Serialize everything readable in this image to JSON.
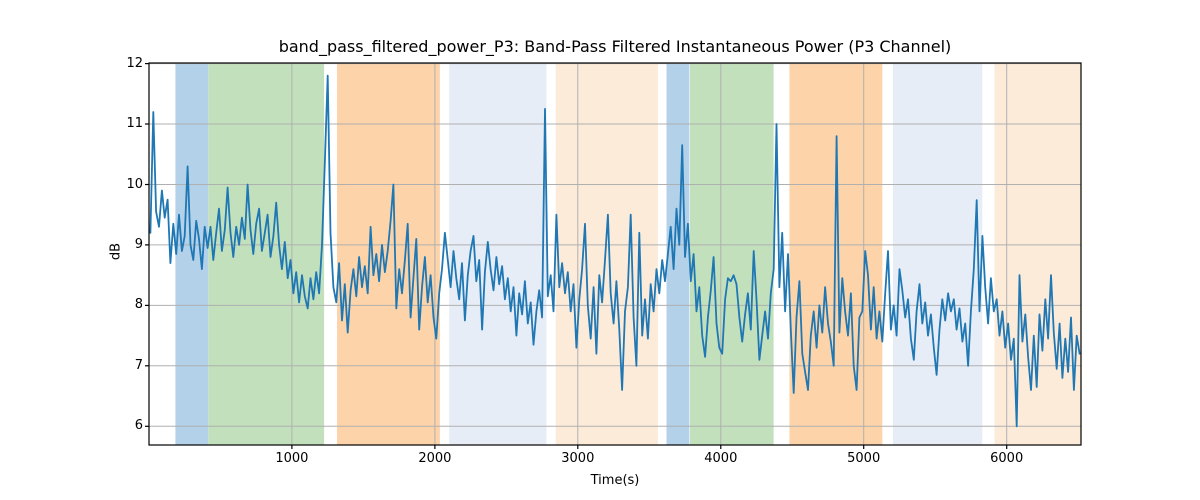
{
  "figure": {
    "title": "band_pass_filtered_power_P3: Band-Pass Filtered Instantaneous Power (P3 Channel)",
    "xlabel": "Time(s)",
    "ylabel": "dB"
  },
  "chart_data": {
    "type": "line",
    "title": "band_pass_filtered_power_P3: Band-Pass Filtered Instantaneous Power (P3 Channel)",
    "xlabel": "Time(s)",
    "ylabel": "dB",
    "xlim": [
      0,
      6520
    ],
    "ylim": [
      5.69,
      12.01
    ],
    "x_ticks": [
      1000,
      2000,
      3000,
      4000,
      5000,
      6000
    ],
    "y_ticks": [
      6,
      7,
      8,
      9,
      10,
      11,
      12
    ],
    "grid": true,
    "legend_position": "none",
    "line_color": "#1f77b4",
    "grid_color": "#b0b0b0",
    "spine_color": "#000000",
    "band_colors": {
      "blue": "#b3d1e9",
      "green": "#c3e0bc",
      "orange": "#fdd4a9",
      "lightblue": "#e6edf6",
      "lightorange": "#fdebda"
    },
    "background_bands": [
      {
        "x0": 185,
        "x1": 415,
        "color_key": "blue"
      },
      {
        "x0": 415,
        "x1": 1225,
        "color_key": "green"
      },
      {
        "x0": 1315,
        "x1": 2035,
        "color_key": "orange"
      },
      {
        "x0": 2100,
        "x1": 2780,
        "color_key": "lightblue"
      },
      {
        "x0": 2845,
        "x1": 3560,
        "color_key": "lightorange"
      },
      {
        "x0": 3620,
        "x1": 3780,
        "color_key": "blue"
      },
      {
        "x0": 3785,
        "x1": 4370,
        "color_key": "green"
      },
      {
        "x0": 4480,
        "x1": 5130,
        "color_key": "orange"
      },
      {
        "x0": 5205,
        "x1": 5830,
        "color_key": "lightblue"
      },
      {
        "x0": 5915,
        "x1": 6520,
        "color_key": "lightorange"
      }
    ],
    "series": [
      {
        "name": "band_pass_filtered_power_P3",
        "x_start": 10,
        "x_step": 20,
        "values": [
          9.2,
          11.2,
          9.55,
          9.3,
          9.9,
          9.45,
          9.75,
          8.7,
          9.35,
          8.85,
          9.5,
          8.9,
          9.15,
          10.3,
          9.0,
          8.75,
          9.4,
          9.1,
          8.6,
          9.3,
          8.95,
          9.3,
          8.75,
          9.2,
          9.6,
          8.9,
          9.25,
          9.95,
          9.2,
          8.8,
          9.3,
          9.0,
          9.45,
          9.1,
          10.0,
          9.25,
          8.85,
          9.35,
          9.6,
          8.9,
          9.2,
          9.5,
          8.8,
          9.15,
          9.7,
          9.0,
          8.6,
          9.05,
          8.45,
          8.75,
          8.2,
          8.55,
          8.05,
          8.5,
          8.15,
          7.95,
          8.45,
          8.1,
          8.55,
          8.2,
          9.0,
          10.35,
          11.8,
          9.2,
          8.3,
          8.05,
          8.7,
          7.75,
          8.35,
          7.55,
          8.25,
          8.6,
          8.15,
          8.8,
          8.3,
          8.65,
          8.2,
          9.3,
          8.5,
          8.85,
          8.4,
          9.0,
          8.55,
          8.9,
          9.4,
          10.0,
          7.95,
          8.6,
          8.2,
          8.75,
          9.35,
          7.8,
          8.45,
          9.1,
          7.6,
          8.3,
          8.8,
          8.05,
          8.5,
          7.8,
          7.45,
          8.2,
          8.6,
          9.2,
          8.75,
          8.3,
          8.9,
          8.45,
          8.1,
          8.7,
          7.75,
          8.5,
          8.9,
          9.15,
          8.4,
          8.75,
          7.6,
          8.55,
          9.05,
          8.6,
          8.25,
          8.8,
          8.35,
          8.65,
          8.1,
          8.45,
          7.9,
          8.3,
          7.5,
          8.2,
          7.85,
          8.4,
          7.7,
          8.05,
          7.35,
          7.9,
          8.25,
          7.8,
          11.25,
          8.15,
          8.5,
          7.9,
          9.5,
          8.3,
          8.7,
          8.2,
          8.55,
          7.9,
          8.35,
          7.3,
          8.1,
          8.6,
          9.35,
          8.0,
          7.45,
          8.3,
          7.2,
          8.5,
          8.05,
          8.75,
          9.5,
          8.2,
          7.7,
          8.4,
          7.6,
          6.6,
          7.9,
          8.3,
          9.5,
          7.8,
          7.0,
          9.2,
          7.5,
          8.1,
          7.45,
          8.35,
          7.9,
          8.6,
          8.2,
          8.75,
          8.4,
          8.85,
          9.3,
          8.6,
          9.6,
          9.0,
          10.65,
          8.8,
          9.35,
          8.4,
          8.85,
          7.9,
          8.3,
          7.5,
          7.15,
          7.8,
          8.25,
          8.8,
          7.7,
          7.3,
          7.2,
          8.1,
          8.45,
          8.4,
          8.5,
          8.35,
          7.8,
          7.4,
          7.85,
          8.2,
          7.6,
          8.9,
          8.1,
          7.1,
          7.5,
          7.9,
          7.45,
          8.2,
          8.6,
          11.0,
          8.3,
          9.2,
          7.9,
          8.85,
          7.6,
          6.55,
          7.8,
          8.4,
          7.2,
          6.9,
          6.6,
          7.5,
          7.9,
          7.3,
          8.0,
          7.55,
          8.3,
          7.7,
          7.4,
          7.0,
          10.8,
          7.55,
          8.45,
          7.9,
          7.5,
          8.2,
          7.0,
          6.6,
          7.8,
          7.9,
          8.9,
          8.5,
          7.6,
          8.3,
          7.45,
          7.9,
          7.4,
          8.2,
          8.9,
          7.6,
          8.0,
          7.5,
          8.6,
          8.25,
          7.8,
          8.1,
          7.45,
          7.1,
          7.9,
          8.35,
          7.7,
          8.05,
          7.5,
          7.85,
          7.3,
          6.85,
          7.6,
          8.1,
          7.75,
          8.2,
          7.9,
          8.1,
          7.6,
          7.95,
          7.4,
          7.7,
          7.0,
          7.9,
          8.6,
          9.74,
          7.9,
          9.15,
          8.3,
          7.7,
          8.45,
          7.9,
          8.1,
          7.5,
          7.9,
          7.3,
          7.7,
          7.1,
          7.45,
          6.0,
          8.5,
          7.4,
          7.85,
          7.15,
          6.6,
          7.5,
          6.65,
          7.85,
          7.25,
          8.1,
          7.45,
          8.5,
          7.55,
          6.95,
          7.7,
          6.8,
          7.45,
          6.9,
          7.8,
          6.6,
          7.5,
          7.2
        ]
      }
    ]
  }
}
